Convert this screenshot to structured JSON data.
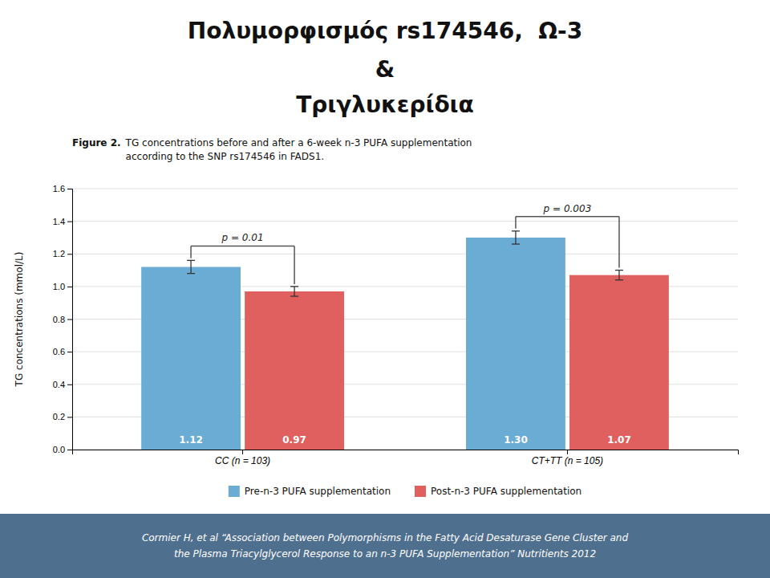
{
  "chart_data": {
    "type": "bar",
    "title": [
      "Πολυμορφισμός rs174546,  Ω-3",
      "&",
      "Τριγλυκερίδια"
    ],
    "caption_label": "Figure 2.",
    "caption": [
      "TG concentrations before and after a 6-week n-3 PUFA supplementation",
      "according to the SNP rs174546 in FADS1."
    ],
    "footnote": [
      "Cormier H, et al “Association between Polymorphisms in the Fatty Acid Desaturase Gene Cluster and",
      "the Plasma Triacylglycerol Response to an n-3 PUFA Supplementation” Nutritients 2012"
    ],
    "categories": [
      "CC (n = 103)",
      "CT+TT (n = 105)"
    ],
    "series": [
      {
        "name": "Pre-n-3 PUFA supplementation",
        "color": "#6aacd4",
        "values": [
          1.12,
          1.3
        ],
        "value_labels": [
          "1.12",
          "1.30"
        ],
        "errors": [
          0.04,
          0.04
        ]
      },
      {
        "name": "Post-n-3 PUFA supplementation",
        "color": "#e06060",
        "values": [
          0.97,
          1.07
        ],
        "value_labels": [
          "0.97",
          "1.07"
        ],
        "errors": [
          0.03,
          0.03
        ]
      }
    ],
    "annotations": [
      "p = 0.01",
      "p = 0.003"
    ],
    "ylabel": "TG concentrations (mmol/L)",
    "ylim": [
      0,
      1.6
    ],
    "yticks": [
      {
        "value": 0,
        "label": "0.0"
      },
      0.2,
      0.4,
      0.6,
      0.8,
      {
        "value": 1,
        "label": "1.0"
      },
      1.2,
      1.4,
      1.6
    ],
    "grid": true,
    "legend": "bottom",
    "data_labels": true
  }
}
